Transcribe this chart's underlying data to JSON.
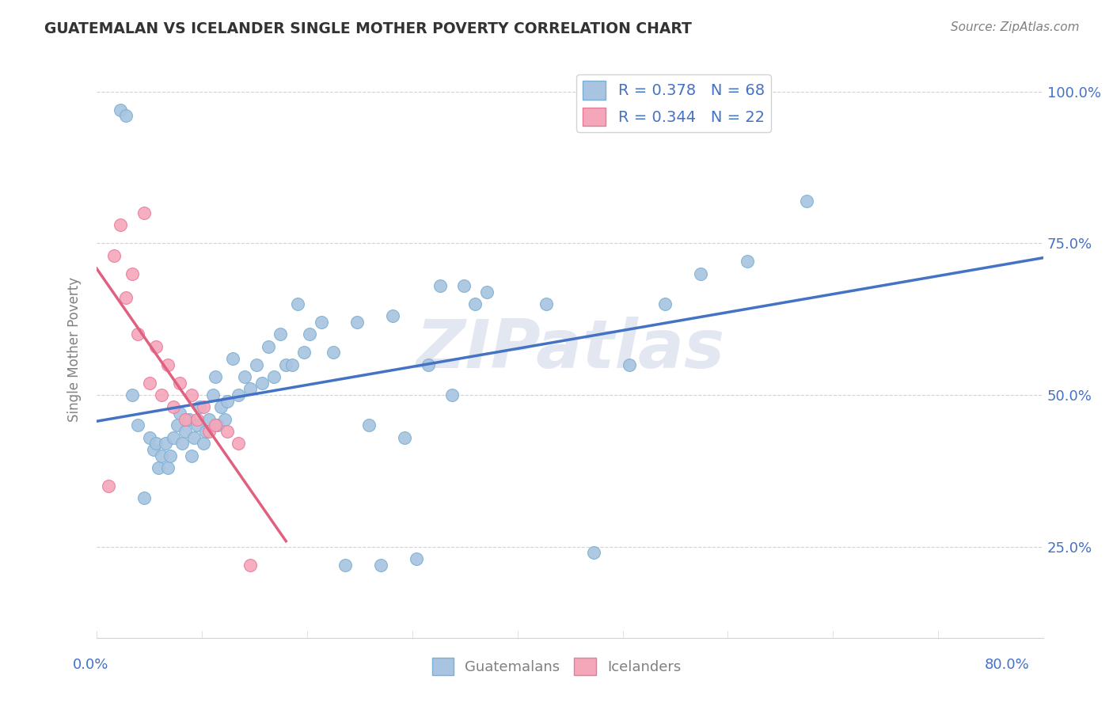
{
  "title": "GUATEMALAN VS ICELANDER SINGLE MOTHER POVERTY CORRELATION CHART",
  "source": "Source: ZipAtlas.com",
  "ylabel": "Single Mother Poverty",
  "xlim": [
    0.0,
    0.8
  ],
  "ylim": [
    0.1,
    1.05
  ],
  "guatemalan_color": "#a8c4e0",
  "icelander_color": "#f4a7b9",
  "guatemalan_edge": "#7aafd4",
  "icelander_edge": "#e87a9a",
  "regression_blue": "#4472c4",
  "regression_pink": "#e06080",
  "R_guatemalan": 0.378,
  "N_guatemalan": 68,
  "R_icelander": 0.344,
  "N_icelander": 22,
  "legend_text_color": "#4472c4",
  "watermark": "ZIPatlas",
  "guatemalan_x": [
    0.02,
    0.025,
    0.03,
    0.035,
    0.04,
    0.045,
    0.048,
    0.05,
    0.052,
    0.055,
    0.058,
    0.06,
    0.062,
    0.065,
    0.068,
    0.07,
    0.072,
    0.075,
    0.078,
    0.08,
    0.082,
    0.085,
    0.087,
    0.09,
    0.092,
    0.095,
    0.098,
    0.1,
    0.102,
    0.105,
    0.108,
    0.11,
    0.115,
    0.12,
    0.125,
    0.13,
    0.135,
    0.14,
    0.145,
    0.15,
    0.155,
    0.16,
    0.165,
    0.17,
    0.175,
    0.18,
    0.19,
    0.2,
    0.21,
    0.22,
    0.23,
    0.24,
    0.25,
    0.26,
    0.27,
    0.28,
    0.29,
    0.3,
    0.31,
    0.32,
    0.33,
    0.38,
    0.42,
    0.45,
    0.48,
    0.51,
    0.55,
    0.6
  ],
  "guatemalan_y": [
    0.97,
    0.96,
    0.5,
    0.45,
    0.33,
    0.43,
    0.41,
    0.42,
    0.38,
    0.4,
    0.42,
    0.38,
    0.4,
    0.43,
    0.45,
    0.47,
    0.42,
    0.44,
    0.46,
    0.4,
    0.43,
    0.45,
    0.48,
    0.42,
    0.44,
    0.46,
    0.5,
    0.53,
    0.45,
    0.48,
    0.46,
    0.49,
    0.56,
    0.5,
    0.53,
    0.51,
    0.55,
    0.52,
    0.58,
    0.53,
    0.6,
    0.55,
    0.55,
    0.65,
    0.57,
    0.6,
    0.62,
    0.57,
    0.22,
    0.62,
    0.45,
    0.22,
    0.63,
    0.43,
    0.23,
    0.55,
    0.68,
    0.5,
    0.68,
    0.65,
    0.67,
    0.65,
    0.24,
    0.55,
    0.65,
    0.7,
    0.72,
    0.82
  ],
  "icelander_x": [
    0.01,
    0.015,
    0.02,
    0.025,
    0.03,
    0.035,
    0.04,
    0.045,
    0.05,
    0.055,
    0.06,
    0.065,
    0.07,
    0.075,
    0.08,
    0.085,
    0.09,
    0.095,
    0.1,
    0.11,
    0.12,
    0.13
  ],
  "icelander_y": [
    0.35,
    0.73,
    0.78,
    0.66,
    0.7,
    0.6,
    0.8,
    0.52,
    0.58,
    0.5,
    0.55,
    0.48,
    0.52,
    0.46,
    0.5,
    0.46,
    0.48,
    0.44,
    0.45,
    0.44,
    0.42,
    0.22
  ]
}
